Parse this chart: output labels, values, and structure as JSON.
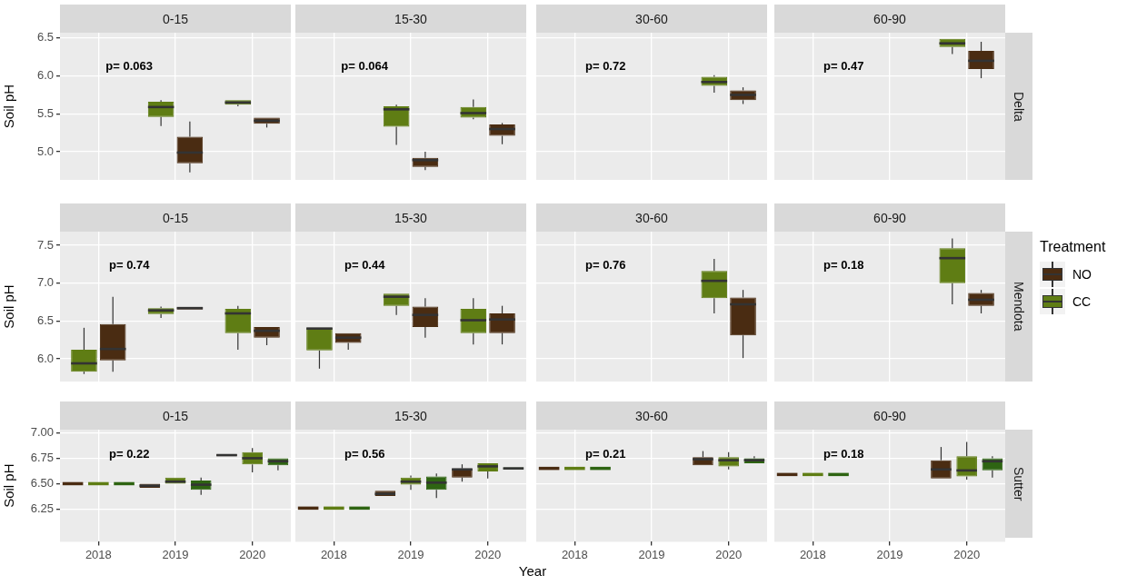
{
  "chart_data": [
    {
      "type": "box",
      "title": "0-15",
      "categories": [
        "2018",
        "2019",
        "2020"
      ],
      "ylabel": "Soil pH",
      "ylim": [
        4.63,
        6.57
      ],
      "yticks": [
        {
          "value": 5,
          "label": "5.0"
        },
        5.5,
        {
          "value": 6,
          "label": "6.0"
        },
        6.5
      ],
      "grid": true,
      "tick_labels": "y",
      "annotations": [
        "p= 0.063"
      ],
      "series": [
        {
          "color": "#5f7d14",
          "boxes": [
            null,
            {
              "low": 5.34,
              "q1": 5.46,
              "median": 5.59,
              "q3": 5.66,
              "high": 5.68
            },
            {
              "low": 5.6,
              "q1": 5.62,
              "median": 5.65,
              "q3": 5.68,
              "high": 5.68
            }
          ]
        },
        {
          "color": "#4a2c12",
          "boxes": [
            null,
            {
              "low": 4.73,
              "q1": 4.85,
              "median": 4.99,
              "q3": 5.2,
              "high": 5.4
            },
            {
              "low": 5.32,
              "q1": 5.37,
              "median": 5.41,
              "q3": 5.45,
              "high": 5.45
            }
          ]
        }
      ]
    },
    {
      "type": "box",
      "title": "15-30",
      "categories": [
        "2018",
        "2019",
        "2020"
      ],
      "ylim": [
        4.63,
        6.57
      ],
      "yticks": [
        5,
        5.5,
        6,
        6.5
      ],
      "grid": true,
      "tick_labels": false,
      "annotations": [
        "p= 0.064"
      ],
      "series": [
        {
          "color": "#5f7d14",
          "boxes": [
            null,
            {
              "low": 5.09,
              "q1": 5.33,
              "median": 5.56,
              "q3": 5.6,
              "high": 5.62
            },
            {
              "low": 5.43,
              "q1": 5.45,
              "median": 5.51,
              "q3": 5.59,
              "high": 5.69
            }
          ]
        },
        {
          "color": "#4a2c12",
          "boxes": [
            null,
            {
              "low": 4.76,
              "q1": 4.8,
              "median": 4.89,
              "q3": 4.92,
              "high": 5.0
            },
            {
              "low": 5.1,
              "q1": 5.21,
              "median": 5.3,
              "q3": 5.36,
              "high": 5.38
            }
          ]
        }
      ]
    },
    {
      "type": "box",
      "title": "30-60",
      "categories": [
        "2018",
        "2019",
        "2020"
      ],
      "ylim": [
        4.63,
        6.57
      ],
      "yticks": [
        5,
        5.5,
        6,
        6.5
      ],
      "grid": true,
      "tick_labels": false,
      "annotations": [
        "p= 0.72"
      ],
      "series": [
        {
          "color": "#5f7d14",
          "boxes": [
            null,
            null,
            {
              "low": 5.78,
              "q1": 5.87,
              "median": 5.92,
              "q3": 5.99,
              "high": 6.01
            }
          ]
        },
        {
          "color": "#4a2c12",
          "boxes": [
            null,
            null,
            {
              "low": 5.63,
              "q1": 5.68,
              "median": 5.75,
              "q3": 5.81,
              "high": 5.85
            }
          ]
        }
      ]
    },
    {
      "type": "box",
      "title": "60-90",
      "y2label": "Delta",
      "categories": [
        "2018",
        "2019",
        "2020"
      ],
      "ylim": [
        4.63,
        6.57
      ],
      "yticks": [
        5,
        5.5,
        6,
        6.5
      ],
      "grid": true,
      "tick_labels": false,
      "annotations": [
        "p= 0.47"
      ],
      "series": [
        {
          "color": "#5f7d14",
          "boxes": [
            null,
            null,
            {
              "low": 6.29,
              "q1": 6.38,
              "median": 6.43,
              "q3": 6.49,
              "high": 6.49
            }
          ]
        },
        {
          "color": "#4a2c12",
          "boxes": [
            null,
            null,
            {
              "low": 5.97,
              "q1": 6.09,
              "median": 6.2,
              "q3": 6.33,
              "high": 6.45
            }
          ]
        }
      ]
    },
    {
      "type": "box",
      "title": "0-15",
      "categories": [
        "2018",
        "2019",
        "2020"
      ],
      "ylabel": "Soil pH",
      "ylim": [
        5.7,
        7.68
      ],
      "yticks": [
        {
          "value": 6,
          "label": "6.0"
        },
        6.5,
        {
          "value": 7,
          "label": "7.0"
        },
        7.5
      ],
      "grid": true,
      "tick_labels": "y",
      "annotations": [
        "p= 0.74"
      ],
      "series": [
        {
          "color": "#5f7d14",
          "boxes": [
            {
              "low": 5.8,
              "q1": 5.83,
              "median": 5.94,
              "q3": 6.12,
              "high": 6.41
            },
            {
              "low": 6.54,
              "q1": 6.59,
              "median": 6.64,
              "q3": 6.67,
              "high": 6.69
            },
            {
              "low": 6.12,
              "q1": 6.34,
              "median": 6.6,
              "q3": 6.66,
              "high": 6.7
            }
          ]
        },
        {
          "color": "#4a2c12",
          "boxes": [
            {
              "low": 5.83,
              "q1": 5.98,
              "median": 6.13,
              "q3": 6.46,
              "high": 6.82
            },
            {
              "low": 6.65,
              "q1": 6.65,
              "median": 6.67,
              "q3": 6.68,
              "high": 6.68
            },
            {
              "low": 6.18,
              "q1": 6.28,
              "median": 6.37,
              "q3": 6.42,
              "high": 6.42
            }
          ]
        }
      ]
    },
    {
      "type": "box",
      "title": "15-30",
      "categories": [
        "2018",
        "2019",
        "2020"
      ],
      "ylim": [
        5.7,
        7.68
      ],
      "yticks": [
        6,
        6.5,
        7,
        7.5
      ],
      "grid": true,
      "tick_labels": false,
      "annotations": [
        "p= 0.44"
      ],
      "series": [
        {
          "color": "#5f7d14",
          "boxes": [
            {
              "low": 5.87,
              "q1": 6.11,
              "median": 6.4,
              "q3": 6.41,
              "high": 6.41
            },
            {
              "low": 6.58,
              "q1": 6.7,
              "median": 6.82,
              "q3": 6.86,
              "high": 6.86
            },
            {
              "low": 6.19,
              "q1": 6.34,
              "median": 6.51,
              "q3": 6.66,
              "high": 6.8
            }
          ]
        },
        {
          "color": "#4a2c12",
          "boxes": [
            {
              "low": 6.12,
              "q1": 6.21,
              "median": 6.28,
              "q3": 6.34,
              "high": 6.34
            },
            {
              "low": 6.28,
              "q1": 6.42,
              "median": 6.58,
              "q3": 6.69,
              "high": 6.8
            },
            {
              "low": 6.19,
              "q1": 6.34,
              "median": 6.52,
              "q3": 6.6,
              "high": 6.7
            }
          ]
        }
      ]
    },
    {
      "type": "box",
      "title": "30-60",
      "categories": [
        "2018",
        "2019",
        "2020"
      ],
      "ylim": [
        5.7,
        7.68
      ],
      "yticks": [
        6,
        6.5,
        7,
        7.5
      ],
      "grid": true,
      "tick_labels": false,
      "annotations": [
        "p= 0.76"
      ],
      "series": [
        {
          "color": "#5f7d14",
          "boxes": [
            null,
            null,
            {
              "low": 6.6,
              "q1": 6.8,
              "median": 7.03,
              "q3": 7.16,
              "high": 7.32
            }
          ]
        },
        {
          "color": "#4a2c12",
          "boxes": [
            null,
            null,
            {
              "low": 6.01,
              "q1": 6.31,
              "median": 6.72,
              "q3": 6.81,
              "high": 6.91
            }
          ]
        }
      ]
    },
    {
      "type": "box",
      "title": "60-90",
      "y2label": "Mendota",
      "legend": "right",
      "legend_title": "Treatment",
      "categories": [
        "2018",
        "2019",
        "2020"
      ],
      "ylim": [
        5.7,
        7.68
      ],
      "yticks": [
        6,
        6.5,
        7,
        7.5
      ],
      "grid": true,
      "tick_labels": false,
      "annotations": [
        "p= 0.18"
      ],
      "series": [
        {
          "name": "CC",
          "color": "#5f7d14",
          "boxes": [
            null,
            null,
            {
              "low": 6.72,
              "q1": 7.0,
              "median": 7.33,
              "q3": 7.46,
              "high": 7.59
            }
          ]
        },
        {
          "name": "NO",
          "color": "#4a2c12",
          "boxes": [
            null,
            null,
            {
              "low": 6.6,
              "q1": 6.7,
              "median": 6.78,
              "q3": 6.87,
              "high": 6.91
            }
          ]
        }
      ]
    },
    {
      "type": "box",
      "title": "0-15",
      "categories": [
        "2018",
        "2019",
        "2020"
      ],
      "ylabel": "Soil pH",
      "ylim": [
        5.93,
        7.03
      ],
      "yticks": [
        6.25,
        {
          "value": 6.5,
          "label": "6.50"
        },
        6.75,
        {
          "value": 7,
          "label": "7.00"
        }
      ],
      "grid": true,
      "annotations": [
        "p= 0.22"
      ],
      "series": [
        {
          "color": "#4a2c12",
          "boxes": [
            {
              "low": 6.5,
              "q1": 6.5,
              "median": 6.5,
              "q3": 6.5,
              "high": 6.5
            },
            {
              "low": 6.46,
              "q1": 6.46,
              "median": 6.48,
              "q3": 6.5,
              "high": 6.5
            },
            {
              "low": 6.77,
              "q1": 6.77,
              "median": 6.78,
              "q3": 6.79,
              "high": 6.79
            }
          ]
        },
        {
          "color": "#5f7d14",
          "boxes": [
            {
              "low": 6.5,
              "q1": 6.5,
              "median": 6.5,
              "q3": 6.5,
              "high": 6.5
            },
            {
              "low": 6.5,
              "q1": 6.5,
              "median": 6.52,
              "q3": 6.56,
              "high": 6.56
            },
            {
              "low": 6.61,
              "q1": 6.69,
              "median": 6.75,
              "q3": 6.81,
              "high": 6.85
            }
          ]
        },
        {
          "color": "#2e6412",
          "boxes": [
            {
              "low": 6.5,
              "q1": 6.5,
              "median": 6.5,
              "q3": 6.5,
              "high": 6.5
            },
            {
              "low": 6.39,
              "q1": 6.44,
              "median": 6.49,
              "q3": 6.53,
              "high": 6.56
            },
            {
              "low": 6.63,
              "q1": 6.68,
              "median": 6.72,
              "q3": 6.75,
              "high": 6.75
            }
          ]
        }
      ]
    },
    {
      "type": "box",
      "title": "15-30",
      "xlabel": "Year",
      "categories": [
        "2018",
        "2019",
        "2020"
      ],
      "ylim": [
        5.93,
        7.03
      ],
      "yticks": [
        6.25,
        6.5,
        6.75,
        7
      ],
      "grid": true,
      "tick_labels": "x",
      "annotations": [
        "p= 0.56"
      ],
      "series": [
        {
          "color": "#4a2c12",
          "boxes": [
            {
              "low": 6.26,
              "q1": 6.26,
              "median": 6.26,
              "q3": 6.26,
              "high": 6.26
            },
            {
              "low": 6.38,
              "q1": 6.38,
              "median": 6.4,
              "q3": 6.43,
              "high": 6.43
            },
            {
              "low": 6.52,
              "q1": 6.56,
              "median": 6.64,
              "q3": 6.65,
              "high": 6.69
            }
          ]
        },
        {
          "color": "#5f7d14",
          "boxes": [
            {
              "low": 6.26,
              "q1": 6.26,
              "median": 6.26,
              "q3": 6.26,
              "high": 6.26
            },
            {
              "low": 6.44,
              "q1": 6.49,
              "median": 6.52,
              "q3": 6.56,
              "high": 6.58
            },
            {
              "low": 6.55,
              "q1": 6.62,
              "median": 6.67,
              "q3": 6.7,
              "high": 6.7
            }
          ]
        },
        {
          "color": "#2e6412",
          "boxes": [
            {
              "low": 6.26,
              "q1": 6.26,
              "median": 6.26,
              "q3": 6.26,
              "high": 6.26
            },
            {
              "low": 6.36,
              "q1": 6.44,
              "median": 6.51,
              "q3": 6.57,
              "high": 6.6
            },
            {
              "low": 6.64,
              "q1": 6.64,
              "median": 6.65,
              "q3": 6.66,
              "high": 6.66
            }
          ]
        }
      ]
    },
    {
      "type": "box",
      "title": "30-60",
      "categories": [
        "2018",
        "2019",
        "2020"
      ],
      "ylim": [
        5.93,
        7.03
      ],
      "yticks": [
        6.25,
        6.5,
        6.75,
        7
      ],
      "grid": true,
      "tick_labels": "x",
      "annotations": [
        "p= 0.21"
      ],
      "series": [
        {
          "color": "#4a2c12",
          "boxes": [
            {
              "low": 6.65,
              "q1": 6.65,
              "median": 6.65,
              "q3": 6.65,
              "high": 6.65
            },
            null,
            {
              "low": 6.68,
              "q1": 6.68,
              "median": 6.74,
              "q3": 6.76,
              "high": 6.82
            }
          ]
        },
        {
          "color": "#5f7d14",
          "boxes": [
            {
              "low": 6.65,
              "q1": 6.65,
              "median": 6.65,
              "q3": 6.65,
              "high": 6.65
            },
            null,
            {
              "low": 6.64,
              "q1": 6.67,
              "median": 6.73,
              "q3": 6.76,
              "high": 6.81
            }
          ]
        },
        {
          "color": "#2e6412",
          "boxes": [
            {
              "low": 6.65,
              "q1": 6.65,
              "median": 6.65,
              "q3": 6.65,
              "high": 6.65
            },
            null,
            {
              "low": 6.7,
              "q1": 6.7,
              "median": 6.73,
              "q3": 6.75,
              "high": 6.77
            }
          ]
        }
      ]
    },
    {
      "type": "box",
      "title": "60-90",
      "y2label": "Sutter",
      "categories": [
        "2018",
        "2019",
        "2020"
      ],
      "ylim": [
        5.93,
        7.03
      ],
      "yticks": [
        6.25,
        6.5,
        6.75,
        7
      ],
      "grid": true,
      "tick_labels": "x",
      "annotations": [
        "p= 0.18"
      ],
      "series": [
        {
          "color": "#4a2c12",
          "boxes": [
            {
              "low": 6.59,
              "q1": 6.59,
              "median": 6.59,
              "q3": 6.59,
              "high": 6.59
            },
            null,
            {
              "low": 6.55,
              "q1": 6.55,
              "median": 6.64,
              "q3": 6.73,
              "high": 6.86
            }
          ]
        },
        {
          "color": "#5f7d14",
          "boxes": [
            {
              "low": 6.59,
              "q1": 6.59,
              "median": 6.59,
              "q3": 6.59,
              "high": 6.59
            },
            null,
            {
              "low": 6.54,
              "q1": 6.57,
              "median": 6.63,
              "q3": 6.77,
              "high": 6.91
            }
          ]
        },
        {
          "color": "#2e6412",
          "boxes": [
            {
              "low": 6.59,
              "q1": 6.59,
              "median": 6.59,
              "q3": 6.59,
              "high": 6.59
            },
            null,
            {
              "low": 6.56,
              "q1": 6.63,
              "median": 6.72,
              "q3": 6.75,
              "high": 6.77
            }
          ]
        }
      ]
    }
  ]
}
